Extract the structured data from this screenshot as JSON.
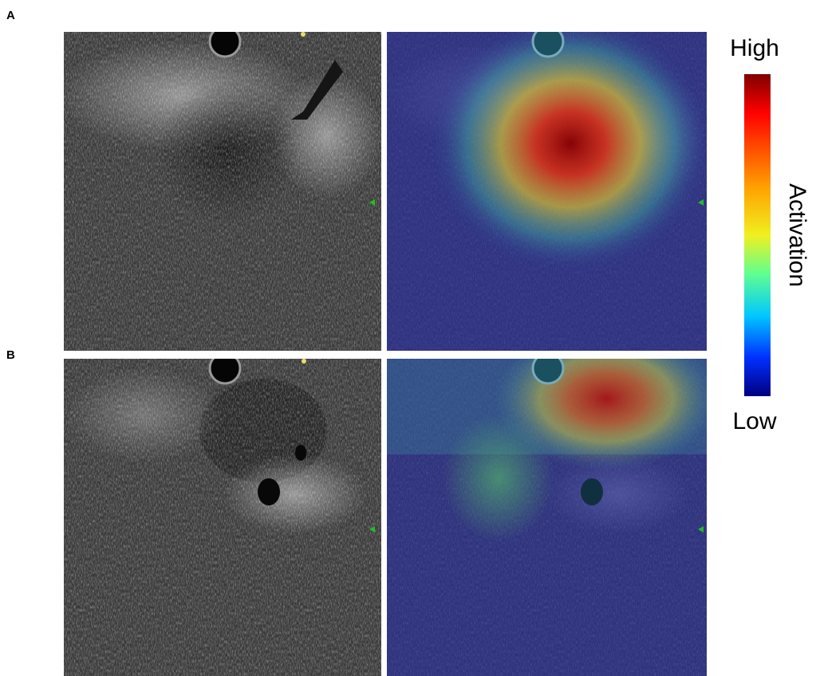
{
  "panels": [
    {
      "label": "A"
    },
    {
      "label": "B"
    }
  ],
  "colorbar": {
    "high_label": "High",
    "low_label": "Low",
    "title": "Activation"
  }
}
